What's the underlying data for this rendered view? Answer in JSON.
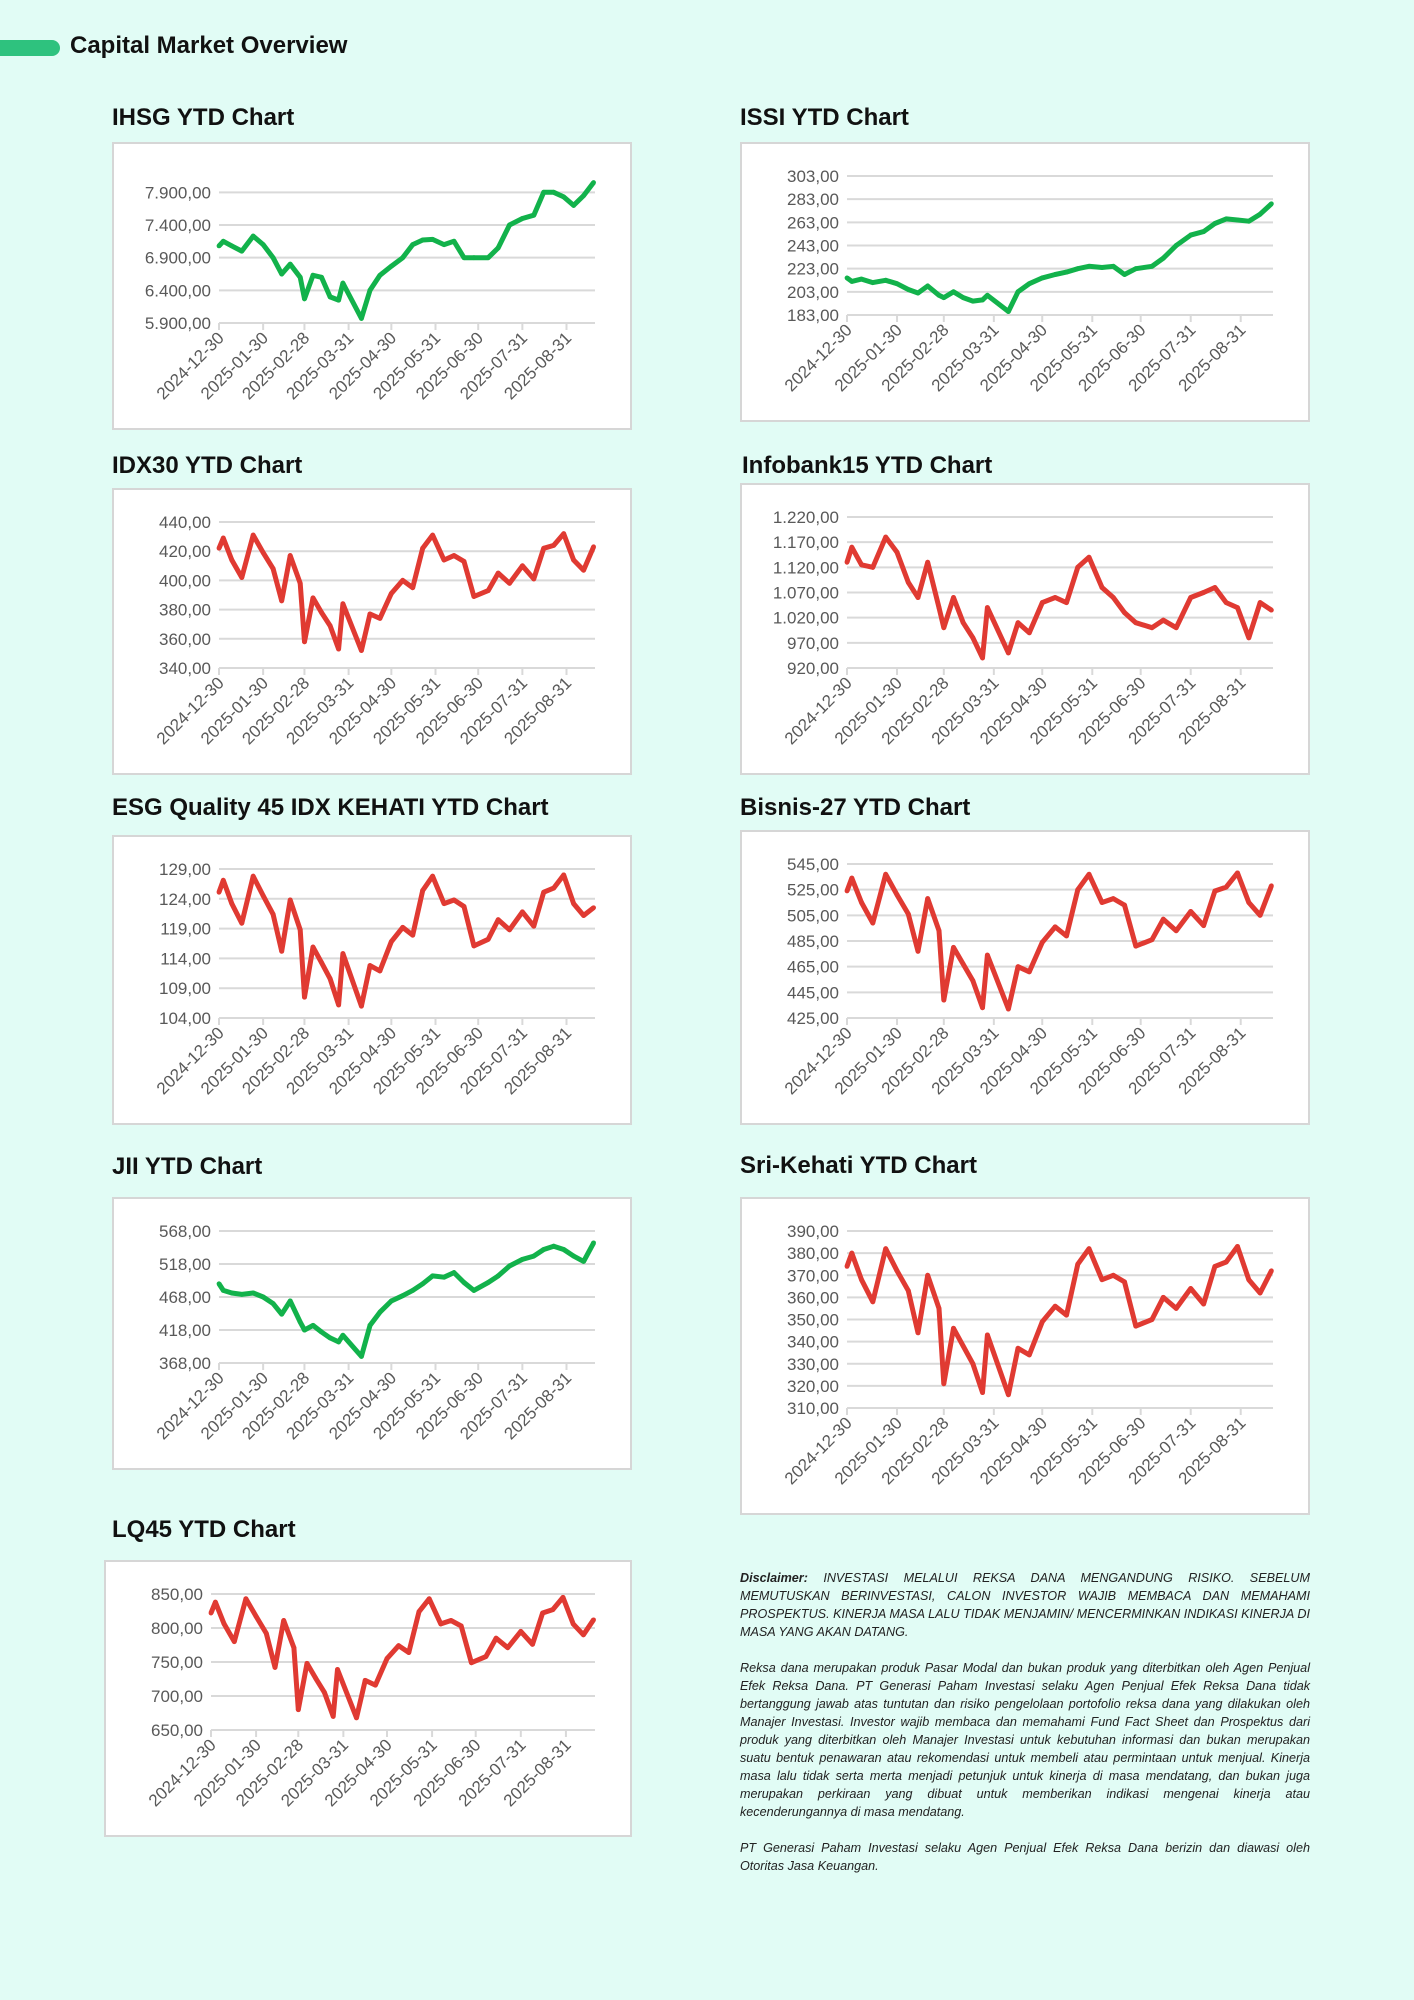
{
  "header": {
    "title": "Capital Market Overview",
    "accent": "#2ec27e"
  },
  "colors": {
    "up": "#12b24b",
    "down": "#e03a32",
    "grid": "#d9d9d9",
    "tick_text": "#595959"
  },
  "x_tick_labels": [
    "2024-12-30",
    "2025-01-30",
    "2025-02-28",
    "2025-03-31",
    "2025-04-30",
    "2025-05-31",
    "2025-06-30",
    "2025-07-31",
    "2025-08-31"
  ],
  "chart_data": [
    {
      "id": "ihsg",
      "type": "line",
      "title": "IHSG YTD Chart",
      "color": "#12b24b",
      "grid": true,
      "yticks": [
        "5.900,00",
        "6.400,00",
        "6.900,00",
        "7.400,00",
        "7.900,00"
      ],
      "ytick_values": [
        5900,
        6400,
        6900,
        7400,
        7900
      ],
      "ylim": [
        5900,
        8150
      ],
      "x": [
        "2024-12-30",
        "2025-01-02",
        "2025-01-08",
        "2025-01-15",
        "2025-01-23",
        "2025-01-30",
        "2025-02-06",
        "2025-02-12",
        "2025-02-18",
        "2025-02-25",
        "2025-02-28",
        "2025-03-06",
        "2025-03-12",
        "2025-03-18",
        "2025-03-24",
        "2025-03-27",
        "2025-04-09",
        "2025-04-15",
        "2025-04-22",
        "2025-04-30",
        "2025-05-08",
        "2025-05-15",
        "2025-05-22",
        "2025-05-29",
        "2025-06-06",
        "2025-06-13",
        "2025-06-20",
        "2025-06-27",
        "2025-07-07",
        "2025-07-14",
        "2025-07-22",
        "2025-07-31",
        "2025-08-08",
        "2025-08-15",
        "2025-08-22",
        "2025-08-29",
        "2025-09-05",
        "2025-09-12",
        "2025-09-19"
      ],
      "y": [
        7080,
        7150,
        7080,
        7000,
        7230,
        7100,
        6900,
        6650,
        6800,
        6600,
        6270,
        6630,
        6600,
        6300,
        6250,
        6510,
        5970,
        6400,
        6630,
        6770,
        6900,
        7100,
        7170,
        7180,
        7100,
        7150,
        6900,
        6900,
        6900,
        7050,
        7400,
        7500,
        7550,
        7900,
        7900,
        7830,
        7700,
        7850,
        8050
      ]
    },
    {
      "id": "issi",
      "type": "line",
      "title": "ISSI YTD Chart",
      "color": "#12b24b",
      "grid": true,
      "yticks": [
        "183,00",
        "203,00",
        "223,00",
        "243,00",
        "263,00",
        "283,00",
        "303,00"
      ],
      "ytick_values": [
        183,
        203,
        223,
        243,
        263,
        283,
        303
      ],
      "ylim": [
        183,
        303
      ],
      "x": [
        "2024-12-30",
        "2025-01-02",
        "2025-01-08",
        "2025-01-15",
        "2025-01-23",
        "2025-01-30",
        "2025-02-06",
        "2025-02-12",
        "2025-02-18",
        "2025-02-25",
        "2025-02-28",
        "2025-03-06",
        "2025-03-12",
        "2025-03-18",
        "2025-03-24",
        "2025-03-27",
        "2025-04-09",
        "2025-04-15",
        "2025-04-22",
        "2025-04-30",
        "2025-05-08",
        "2025-05-15",
        "2025-05-22",
        "2025-05-29",
        "2025-06-06",
        "2025-06-13",
        "2025-06-20",
        "2025-06-27",
        "2025-07-07",
        "2025-07-14",
        "2025-07-22",
        "2025-07-31",
        "2025-08-08",
        "2025-08-15",
        "2025-08-22",
        "2025-08-29",
        "2025-09-05",
        "2025-09-12",
        "2025-09-19"
      ],
      "y": [
        215,
        212,
        214,
        211,
        213,
        210,
        205,
        202,
        208,
        200,
        198,
        203,
        198,
        195,
        196,
        200,
        186,
        203,
        210,
        215,
        218,
        220,
        223,
        225,
        224,
        225,
        218,
        223,
        225,
        232,
        243,
        252,
        255,
        262,
        266,
        265,
        264,
        270,
        279
      ]
    },
    {
      "id": "idx30",
      "type": "line",
      "title": "IDX30 YTD Chart",
      "color": "#e03a32",
      "grid": true,
      "yticks": [
        "340,00",
        "360,00",
        "380,00",
        "400,00",
        "420,00",
        "440,00"
      ],
      "ytick_values": [
        340,
        360,
        380,
        400,
        420,
        440
      ],
      "ylim": [
        340,
        440
      ],
      "x": [
        "2024-12-30",
        "2025-01-02",
        "2025-01-08",
        "2025-01-15",
        "2025-01-23",
        "2025-01-30",
        "2025-02-06",
        "2025-02-12",
        "2025-02-18",
        "2025-02-25",
        "2025-02-28",
        "2025-03-06",
        "2025-03-12",
        "2025-03-18",
        "2025-03-24",
        "2025-03-27",
        "2025-04-09",
        "2025-04-15",
        "2025-04-22",
        "2025-04-30",
        "2025-05-08",
        "2025-05-15",
        "2025-05-22",
        "2025-05-29",
        "2025-06-06",
        "2025-06-13",
        "2025-06-20",
        "2025-06-27",
        "2025-07-07",
        "2025-07-14",
        "2025-07-22",
        "2025-07-31",
        "2025-08-08",
        "2025-08-15",
        "2025-08-22",
        "2025-08-29",
        "2025-09-05",
        "2025-09-12",
        "2025-09-19"
      ],
      "y": [
        422,
        429,
        414,
        402,
        431,
        419,
        408,
        386,
        417,
        398,
        358,
        388,
        378,
        369,
        353,
        384,
        352,
        377,
        374,
        391,
        400,
        395,
        422,
        431,
        414,
        417,
        413,
        389,
        393,
        405,
        398,
        410,
        401,
        422,
        424,
        432,
        414,
        407,
        423
      ]
    },
    {
      "id": "infobank15",
      "type": "line",
      "title": "Infobank15 YTD Chart",
      "color": "#e03a32",
      "grid": true,
      "yticks": [
        "920,00",
        "970,00",
        "1.020,00",
        "1.070,00",
        "1.120,00",
        "1.170,00",
        "1.220,00"
      ],
      "ytick_values": [
        920,
        970,
        1020,
        1070,
        1120,
        1170,
        1220
      ],
      "ylim": [
        920,
        1220
      ],
      "x": [
        "2024-12-30",
        "2025-01-02",
        "2025-01-08",
        "2025-01-15",
        "2025-01-23",
        "2025-01-30",
        "2025-02-06",
        "2025-02-12",
        "2025-02-18",
        "2025-02-25",
        "2025-02-28",
        "2025-03-06",
        "2025-03-12",
        "2025-03-18",
        "2025-03-24",
        "2025-03-27",
        "2025-04-09",
        "2025-04-15",
        "2025-04-22",
        "2025-04-30",
        "2025-05-08",
        "2025-05-15",
        "2025-05-22",
        "2025-05-29",
        "2025-06-06",
        "2025-06-13",
        "2025-06-20",
        "2025-06-27",
        "2025-07-07",
        "2025-07-14",
        "2025-07-22",
        "2025-07-31",
        "2025-08-08",
        "2025-08-15",
        "2025-08-22",
        "2025-08-29",
        "2025-09-05",
        "2025-09-12",
        "2025-09-19"
      ],
      "y": [
        1130,
        1160,
        1125,
        1120,
        1180,
        1150,
        1090,
        1060,
        1130,
        1040,
        1000,
        1060,
        1010,
        980,
        940,
        1040,
        950,
        1010,
        990,
        1050,
        1060,
        1050,
        1120,
        1140,
        1080,
        1060,
        1030,
        1010,
        1000,
        1015,
        1000,
        1060,
        1070,
        1080,
        1050,
        1040,
        980,
        1050,
        1035
      ]
    },
    {
      "id": "esg",
      "type": "line",
      "title": "ESG Quality 45 IDX KEHATI YTD Chart",
      "color": "#e03a32",
      "grid": true,
      "yticks": [
        "104,00",
        "109,00",
        "114,00",
        "119,00",
        "124,00",
        "129,00"
      ],
      "ytick_values": [
        104,
        109,
        114,
        119,
        124,
        129
      ],
      "ylim": [
        104,
        129
      ],
      "x": [
        "2024-12-30",
        "2025-01-02",
        "2025-01-08",
        "2025-01-15",
        "2025-01-23",
        "2025-01-30",
        "2025-02-06",
        "2025-02-12",
        "2025-02-18",
        "2025-02-25",
        "2025-02-28",
        "2025-03-06",
        "2025-03-12",
        "2025-03-18",
        "2025-03-24",
        "2025-03-27",
        "2025-04-09",
        "2025-04-15",
        "2025-04-22",
        "2025-04-30",
        "2025-05-08",
        "2025-05-15",
        "2025-05-22",
        "2025-05-29",
        "2025-06-06",
        "2025-06-13",
        "2025-06-20",
        "2025-06-27",
        "2025-07-07",
        "2025-07-14",
        "2025-07-22",
        "2025-07-31",
        "2025-08-08",
        "2025-08-15",
        "2025-08-22",
        "2025-08-29",
        "2025-09-05",
        "2025-09-12",
        "2025-09-19"
      ],
      "y": [
        125.1,
        127.1,
        123.2,
        119.9,
        127.8,
        124.5,
        121.4,
        115.2,
        123.8,
        118.8,
        107.5,
        115.9,
        113.3,
        110.6,
        106.2,
        114.8,
        106.0,
        112.8,
        111.9,
        116.8,
        119.2,
        117.9,
        125.4,
        127.8,
        123.2,
        123.8,
        122.7,
        116.1,
        117.2,
        120.5,
        118.8,
        121.8,
        119.4,
        125.1,
        125.8,
        128.0,
        123.2,
        121.2,
        122.5
      ]
    },
    {
      "id": "bisnis27",
      "type": "line",
      "title": "Bisnis-27 YTD Chart",
      "color": "#e03a32",
      "grid": true,
      "yticks": [
        "425,00",
        "445,00",
        "465,00",
        "485,00",
        "505,00",
        "525,00",
        "545,00"
      ],
      "ytick_values": [
        425,
        445,
        465,
        485,
        505,
        525,
        545
      ],
      "ylim": [
        425,
        545
      ],
      "x": [
        "2024-12-30",
        "2025-01-02",
        "2025-01-08",
        "2025-01-15",
        "2025-01-23",
        "2025-01-30",
        "2025-02-06",
        "2025-02-12",
        "2025-02-18",
        "2025-02-25",
        "2025-02-28",
        "2025-03-06",
        "2025-03-12",
        "2025-03-18",
        "2025-03-24",
        "2025-03-27",
        "2025-04-09",
        "2025-04-15",
        "2025-04-22",
        "2025-04-30",
        "2025-05-08",
        "2025-05-15",
        "2025-05-22",
        "2025-05-29",
        "2025-06-06",
        "2025-06-13",
        "2025-06-20",
        "2025-06-27",
        "2025-07-07",
        "2025-07-14",
        "2025-07-22",
        "2025-07-31",
        "2025-08-08",
        "2025-08-15",
        "2025-08-22",
        "2025-08-29",
        "2025-09-05",
        "2025-09-12",
        "2025-09-19"
      ],
      "y": [
        524,
        534,
        515,
        499,
        537,
        521,
        506,
        477,
        518,
        493,
        439,
        480,
        467,
        454,
        433,
        474,
        432,
        465,
        461,
        484,
        496,
        489,
        525,
        537,
        515,
        518,
        513,
        481,
        486,
        502,
        493,
        508,
        497,
        524,
        527,
        538,
        515,
        505,
        528
      ]
    },
    {
      "id": "jii",
      "type": "line",
      "title": "JII YTD Chart",
      "color": "#12b24b",
      "grid": true,
      "yticks": [
        "368,00",
        "418,00",
        "468,00",
        "518,00",
        "568,00"
      ],
      "ytick_values": [
        368,
        418,
        468,
        518,
        568
      ],
      "ylim": [
        368,
        568
      ],
      "x": [
        "2024-12-30",
        "2025-01-02",
        "2025-01-08",
        "2025-01-15",
        "2025-01-23",
        "2025-01-30",
        "2025-02-06",
        "2025-02-12",
        "2025-02-18",
        "2025-02-25",
        "2025-02-28",
        "2025-03-06",
        "2025-03-12",
        "2025-03-18",
        "2025-03-24",
        "2025-03-27",
        "2025-04-09",
        "2025-04-15",
        "2025-04-22",
        "2025-04-30",
        "2025-05-08",
        "2025-05-15",
        "2025-05-22",
        "2025-05-29",
        "2025-06-06",
        "2025-06-13",
        "2025-06-20",
        "2025-06-27",
        "2025-07-07",
        "2025-07-14",
        "2025-07-22",
        "2025-07-31",
        "2025-08-08",
        "2025-08-15",
        "2025-08-22",
        "2025-08-29",
        "2025-09-05",
        "2025-09-12",
        "2025-09-19"
      ],
      "y": [
        488,
        478,
        474,
        472,
        474,
        468,
        458,
        442,
        462,
        430,
        418,
        425,
        415,
        406,
        400,
        410,
        378,
        425,
        445,
        462,
        470,
        478,
        488,
        500,
        498,
        505,
        490,
        478,
        490,
        500,
        515,
        525,
        530,
        540,
        545,
        540,
        530,
        522,
        550
      ]
    },
    {
      "id": "srikehati",
      "type": "line",
      "title": "Sri-Kehati YTD Chart",
      "color": "#e03a32",
      "grid": true,
      "yticks": [
        "310,00",
        "320,00",
        "330,00",
        "340,00",
        "350,00",
        "360,00",
        "370,00",
        "380,00",
        "390,00"
      ],
      "ytick_values": [
        310,
        320,
        330,
        340,
        350,
        360,
        370,
        380,
        390
      ],
      "ylim": [
        310,
        390
      ],
      "x": [
        "2024-12-30",
        "2025-01-02",
        "2025-01-08",
        "2025-01-15",
        "2025-01-23",
        "2025-01-30",
        "2025-02-06",
        "2025-02-12",
        "2025-02-18",
        "2025-02-25",
        "2025-02-28",
        "2025-03-06",
        "2025-03-12",
        "2025-03-18",
        "2025-03-24",
        "2025-03-27",
        "2025-04-09",
        "2025-04-15",
        "2025-04-22",
        "2025-04-30",
        "2025-05-08",
        "2025-05-15",
        "2025-05-22",
        "2025-05-29",
        "2025-06-06",
        "2025-06-13",
        "2025-06-20",
        "2025-06-27",
        "2025-07-07",
        "2025-07-14",
        "2025-07-22",
        "2025-07-31",
        "2025-08-08",
        "2025-08-15",
        "2025-08-22",
        "2025-08-29",
        "2025-09-05",
        "2025-09-12",
        "2025-09-19"
      ],
      "y": [
        374,
        380,
        368,
        358,
        382,
        372,
        363,
        344,
        370,
        355,
        321,
        346,
        338,
        330,
        317,
        343,
        316,
        337,
        334,
        349,
        356,
        352,
        375,
        382,
        368,
        370,
        367,
        347,
        350,
        360,
        355,
        364,
        357,
        374,
        376,
        383,
        368,
        362,
        372
      ]
    },
    {
      "id": "lq45",
      "type": "line",
      "title": "LQ45 YTD Chart",
      "color": "#e03a32",
      "grid": true,
      "yticks": [
        "650,00",
        "700,00",
        "750,00",
        "800,00",
        "850,00"
      ],
      "ytick_values": [
        650,
        700,
        750,
        800,
        850
      ],
      "ylim": [
        650,
        850
      ],
      "x": [
        "2024-12-30",
        "2025-01-02",
        "2025-01-08",
        "2025-01-15",
        "2025-01-23",
        "2025-01-30",
        "2025-02-06",
        "2025-02-12",
        "2025-02-18",
        "2025-02-25",
        "2025-02-28",
        "2025-03-06",
        "2025-03-12",
        "2025-03-18",
        "2025-03-24",
        "2025-03-27",
        "2025-04-09",
        "2025-04-15",
        "2025-04-22",
        "2025-04-30",
        "2025-05-08",
        "2025-05-15",
        "2025-05-22",
        "2025-05-29",
        "2025-06-06",
        "2025-06-13",
        "2025-06-20",
        "2025-06-27",
        "2025-07-07",
        "2025-07-14",
        "2025-07-22",
        "2025-07-31",
        "2025-08-08",
        "2025-08-15",
        "2025-08-22",
        "2025-08-29",
        "2025-09-05",
        "2025-09-12",
        "2025-09-19"
      ],
      "y": [
        822,
        838,
        806,
        780,
        843,
        817,
        792,
        742,
        811,
        771,
        680,
        748,
        726,
        705,
        670,
        739,
        668,
        723,
        716,
        755,
        774,
        764,
        824,
        843,
        806,
        811,
        803,
        749,
        758,
        785,
        771,
        795,
        776,
        822,
        827,
        845,
        806,
        790,
        812
      ]
    }
  ],
  "disclaimer": {
    "label": "Disclaimer:",
    "lead": " INVESTASI MELALUI REKSA DANA MENGANDUNG RISIKO. SEBELUM MEMUTUSKAN BERINVESTASI, CALON INVESTOR WAJIB MEMBACA DAN MEMAHAMI PROSPEKTUS. KINERJA MASA LALU TIDAK MENJAMIN/ MENCERMINKAN INDIKASI KINERJA DI MASA YANG AKAN DATANG.",
    "body": "Reksa dana merupakan produk Pasar Modal dan bukan produk yang diterbitkan oleh Agen Penjual Efek Reksa Dana. PT Generasi Paham Investasi selaku Agen Penjual Efek Reksa Dana tidak bertanggung jawab atas tuntutan dan risiko pengelolaan portofolio reksa dana yang dilakukan oleh Manajer Investasi. Investor wajib membaca dan memahami Fund Fact Sheet dan Prospektus dari produk yang diterbitkan oleh Manajer Investasi untuk kebutuhan informasi dan bukan merupakan suatu bentuk penawaran atau rekomendasi untuk membeli atau permintaan untuk menjual. Kinerja masa lalu tidak serta merta menjadi petunjuk untuk kinerja di masa mendatang, dan bukan juga merupakan perkiraan yang dibuat untuk memberikan indikasi mengenai kinerja atau kecenderungannya di masa mendatang.",
    "footer": "PT Generasi Paham Investasi selaku Agen Penjual Efek Reksa Dana berizin dan diawasi oleh Otoritas Jasa Keuangan."
  }
}
